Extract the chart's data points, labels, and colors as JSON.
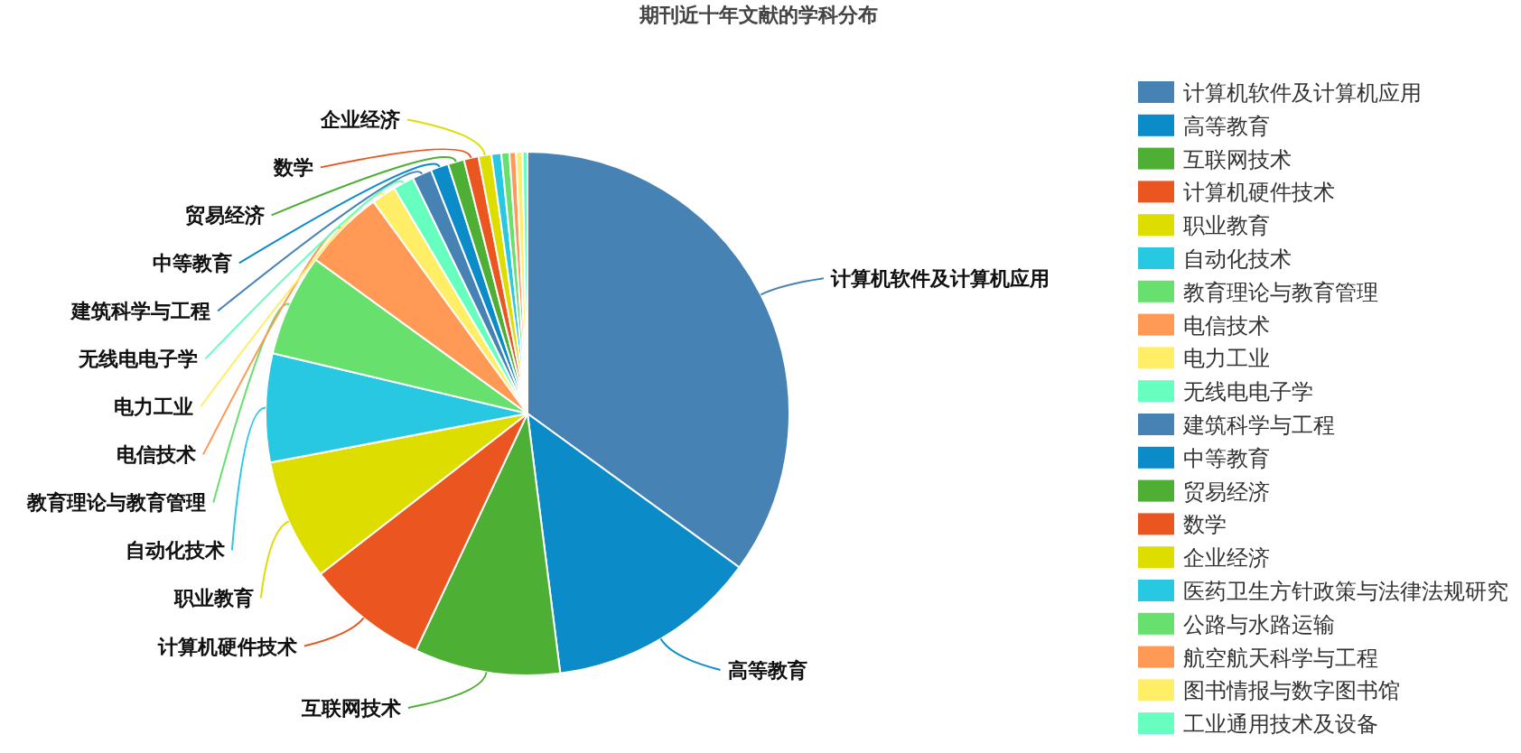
{
  "chart_data": {
    "type": "pie",
    "title": "期刊近十年文献的学科分布",
    "categories": [
      "计算机软件及计算机应用",
      "高等教育",
      "互联网技术",
      "计算机硬件技术",
      "职业教育",
      "自动化技术",
      "教育理论与教育管理",
      "电信技术",
      "电力工业",
      "无线电电子学",
      "建筑科学与工程",
      "中等教育",
      "贸易经济",
      "数学",
      "企业经济",
      "医药卫生方针政策与法律法规研究",
      "公路与水路运输",
      "航空航天科学与工程",
      "图书情报与数字图书馆",
      "工业通用技术及设备"
    ],
    "values": [
      35,
      13,
      9,
      7.5,
      7.5,
      6.7,
      6.3,
      5,
      1.5,
      1.3,
      1.2,
      1.1,
      1,
      0.9,
      0.8,
      0.6,
      0.5,
      0.4,
      0.4,
      0.3
    ],
    "colors": [
      "#4682b4",
      "#0b8cc9",
      "#4daf33",
      "#ea5520",
      "#dddd00",
      "#28c8e2",
      "#67e06e",
      "#ff9955",
      "#ffee66",
      "#66ffc0",
      "#4682b4",
      "#0b8cc9",
      "#4daf33",
      "#ea5520",
      "#dddd00",
      "#28c8e2",
      "#67e06e",
      "#ff9955",
      "#ffee66",
      "#66ffc0"
    ],
    "annotations": [
      {
        "text": "计算机软件及计算机应用",
        "x": "计算机软件及计算机应用"
      },
      {
        "text": "高等教育",
        "x": "高等教育"
      },
      {
        "text": "互联网技术",
        "x": "互联网技术"
      },
      {
        "text": "计算机硬件技术",
        "x": "计算机硬件技术"
      },
      {
        "text": "职业教育",
        "x": "职业教育"
      },
      {
        "text": "自动化技术",
        "x": "自动化技术"
      },
      {
        "text": "教育理论与教育管理",
        "x": "教育理论与教育管理"
      },
      {
        "text": "电信技术",
        "x": "电信技术"
      },
      {
        "text": "电力工业",
        "x": "电力工业"
      },
      {
        "text": "无线电电子学",
        "x": "无线电电子学"
      },
      {
        "text": "建筑科学与工程",
        "x": "建筑科学与工程"
      },
      {
        "text": "中等教育",
        "x": "中等教育"
      },
      {
        "text": "贸易经济",
        "x": "贸易经济"
      },
      {
        "text": "数学",
        "x": "数学"
      },
      {
        "text": "企业经济",
        "x": "企业经济"
      }
    ],
    "legend": "right"
  }
}
